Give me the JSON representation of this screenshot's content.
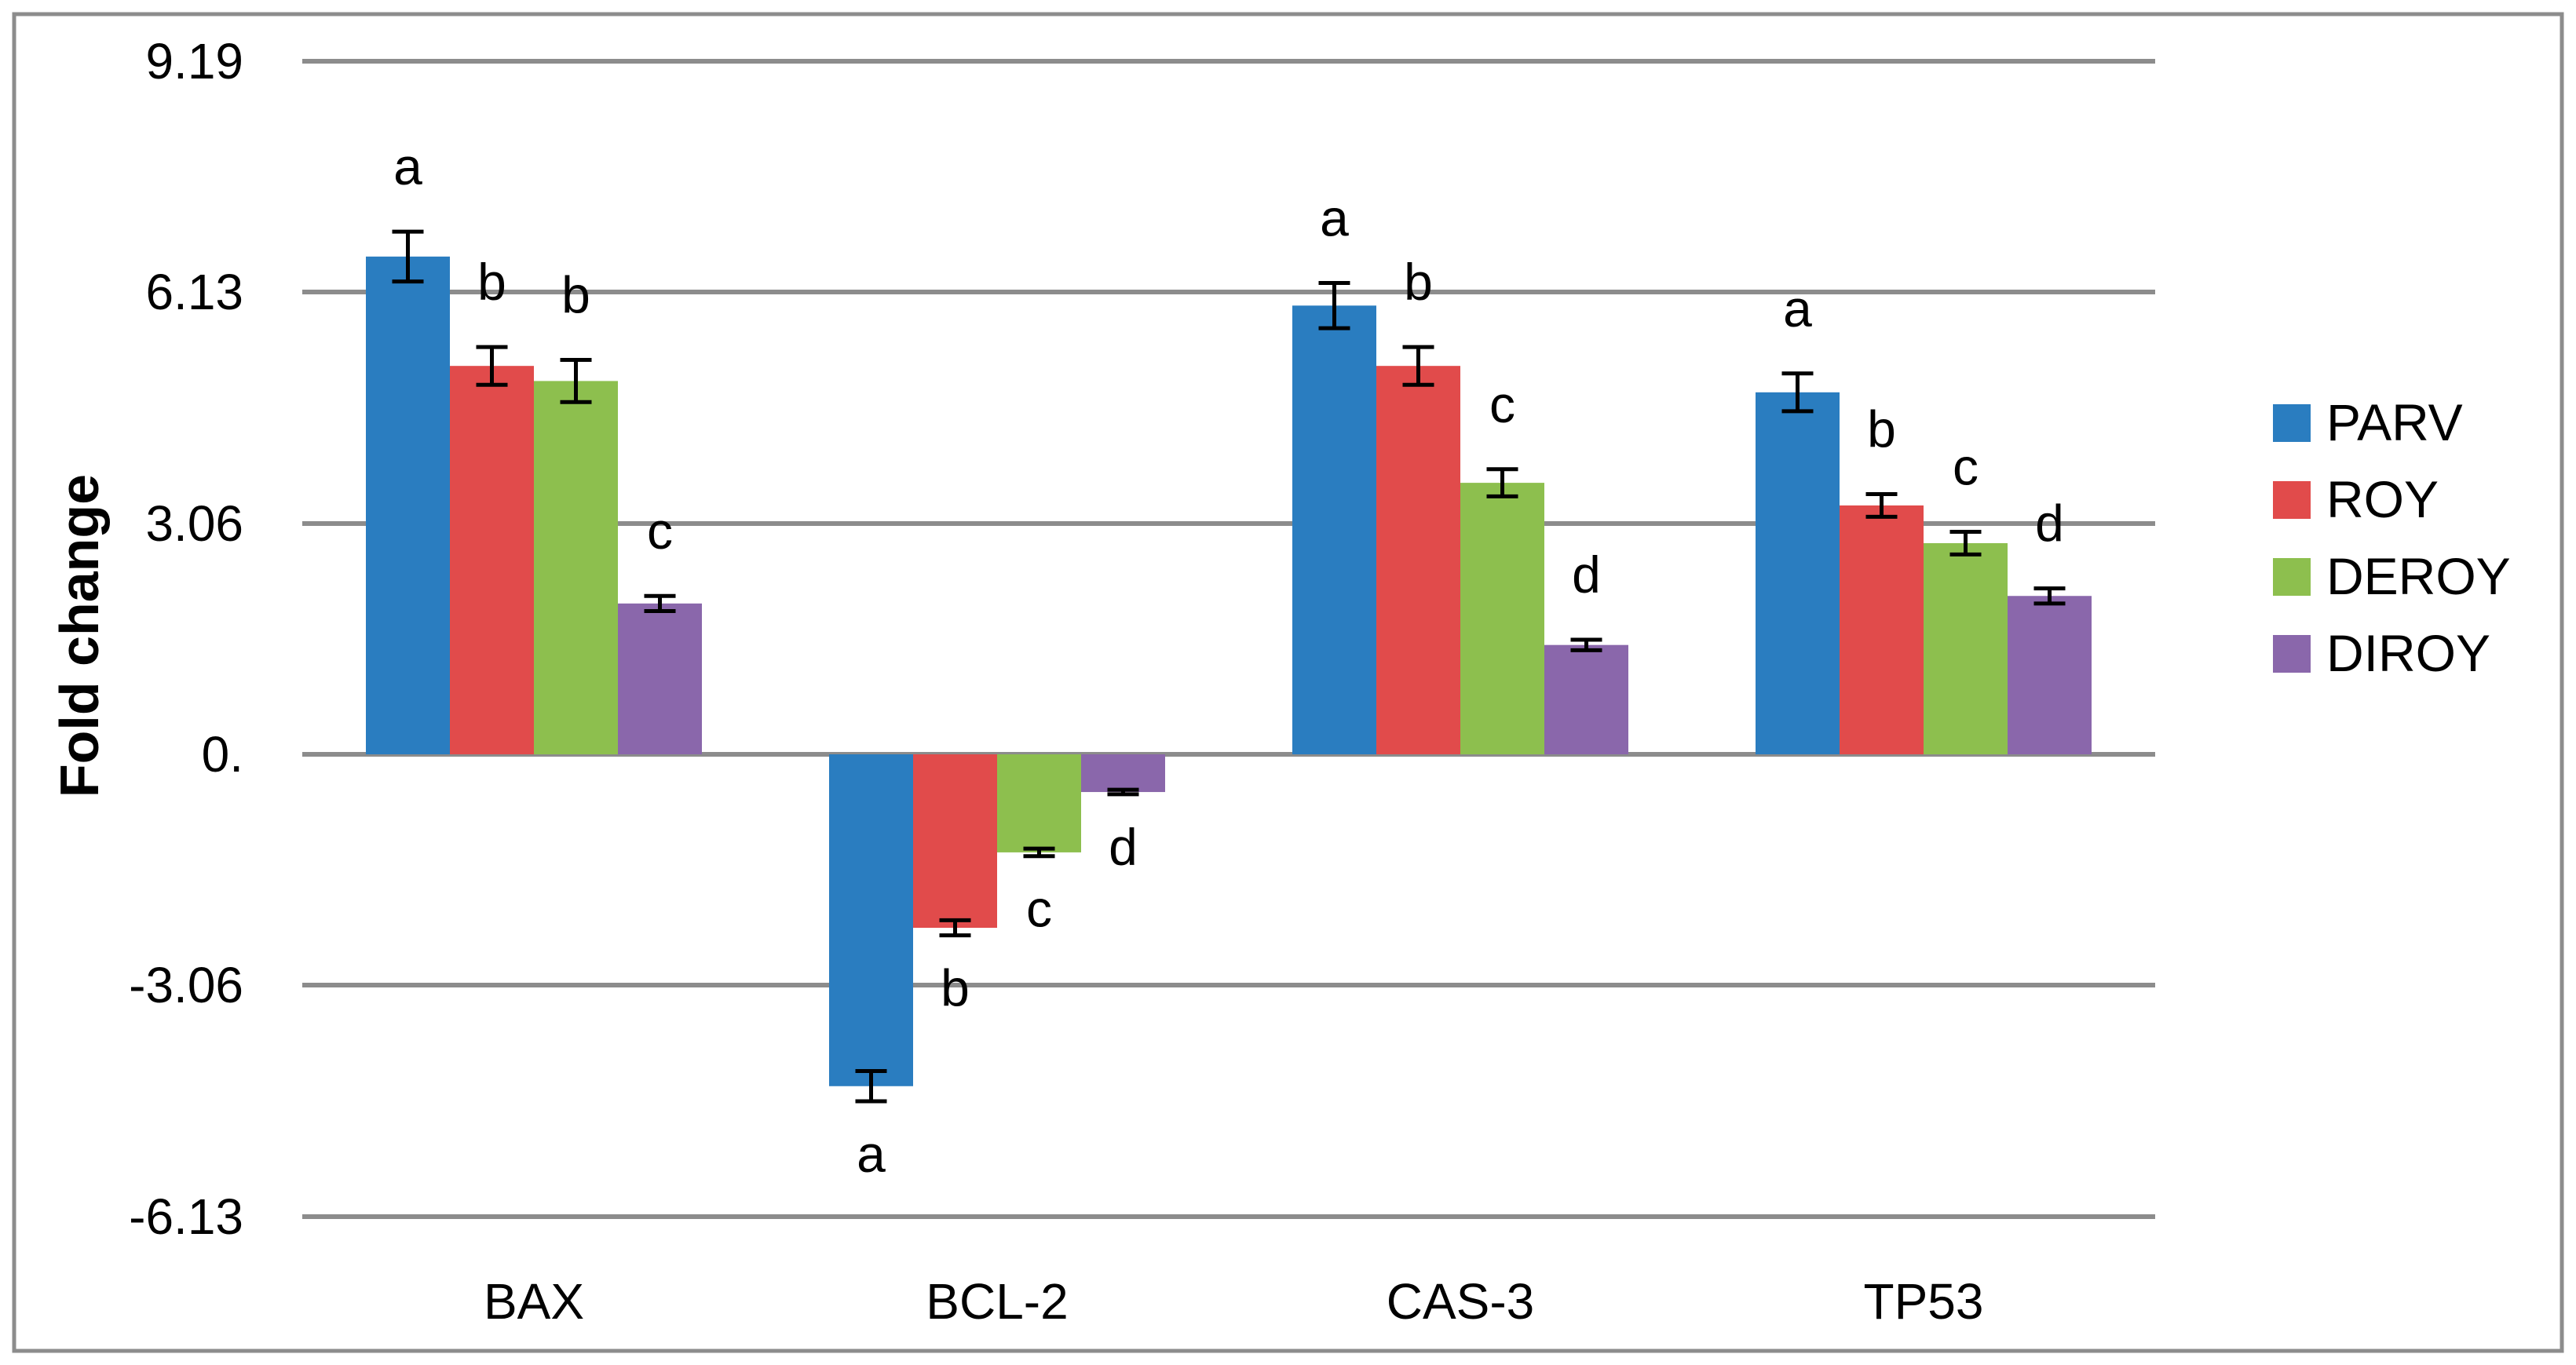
{
  "chart_data": {
    "type": "bar",
    "title": "",
    "xlabel": "",
    "ylabel": "Fold change",
    "ylim": [
      -6.13,
      9.19
    ],
    "yticks": [
      "9.19",
      "6.13",
      "3.06",
      "0.",
      "-3.06",
      "-6.13"
    ],
    "ytick_values": [
      9.19,
      6.13,
      3.06,
      0,
      -3.06,
      -6.13
    ],
    "categories": [
      "BAX",
      "BCL-2",
      "CAS-3",
      "TP53"
    ],
    "grid": true,
    "legend_position": "right",
    "series": [
      {
        "name": "PARV",
        "color": "#2A7DC0",
        "values": [
          6.6,
          -4.4,
          5.95,
          4.8
        ],
        "errors": [
          0.33,
          0.2,
          0.3,
          0.25
        ],
        "letters": [
          "a",
          "a",
          "a",
          "a"
        ]
      },
      {
        "name": "ROY",
        "color": "#E14B4B",
        "values": [
          5.15,
          -2.3,
          5.15,
          3.3
        ],
        "errors": [
          0.25,
          0.1,
          0.25,
          0.15
        ],
        "letters": [
          "b",
          "b",
          "b",
          "b"
        ]
      },
      {
        "name": "DEROY",
        "color": "#8DBF4E",
        "values": [
          4.95,
          -1.3,
          3.6,
          2.8
        ],
        "errors": [
          0.28,
          0.05,
          0.18,
          0.15
        ],
        "letters": [
          "b",
          "c",
          "c",
          "c"
        ]
      },
      {
        "name": "DIROY",
        "color": "#8A67AB",
        "values": [
          2.0,
          -0.5,
          1.45,
          2.1
        ],
        "errors": [
          0.1,
          0.03,
          0.07,
          0.1
        ],
        "letters": [
          "c",
          "d",
          "d",
          "d"
        ]
      }
    ]
  }
}
